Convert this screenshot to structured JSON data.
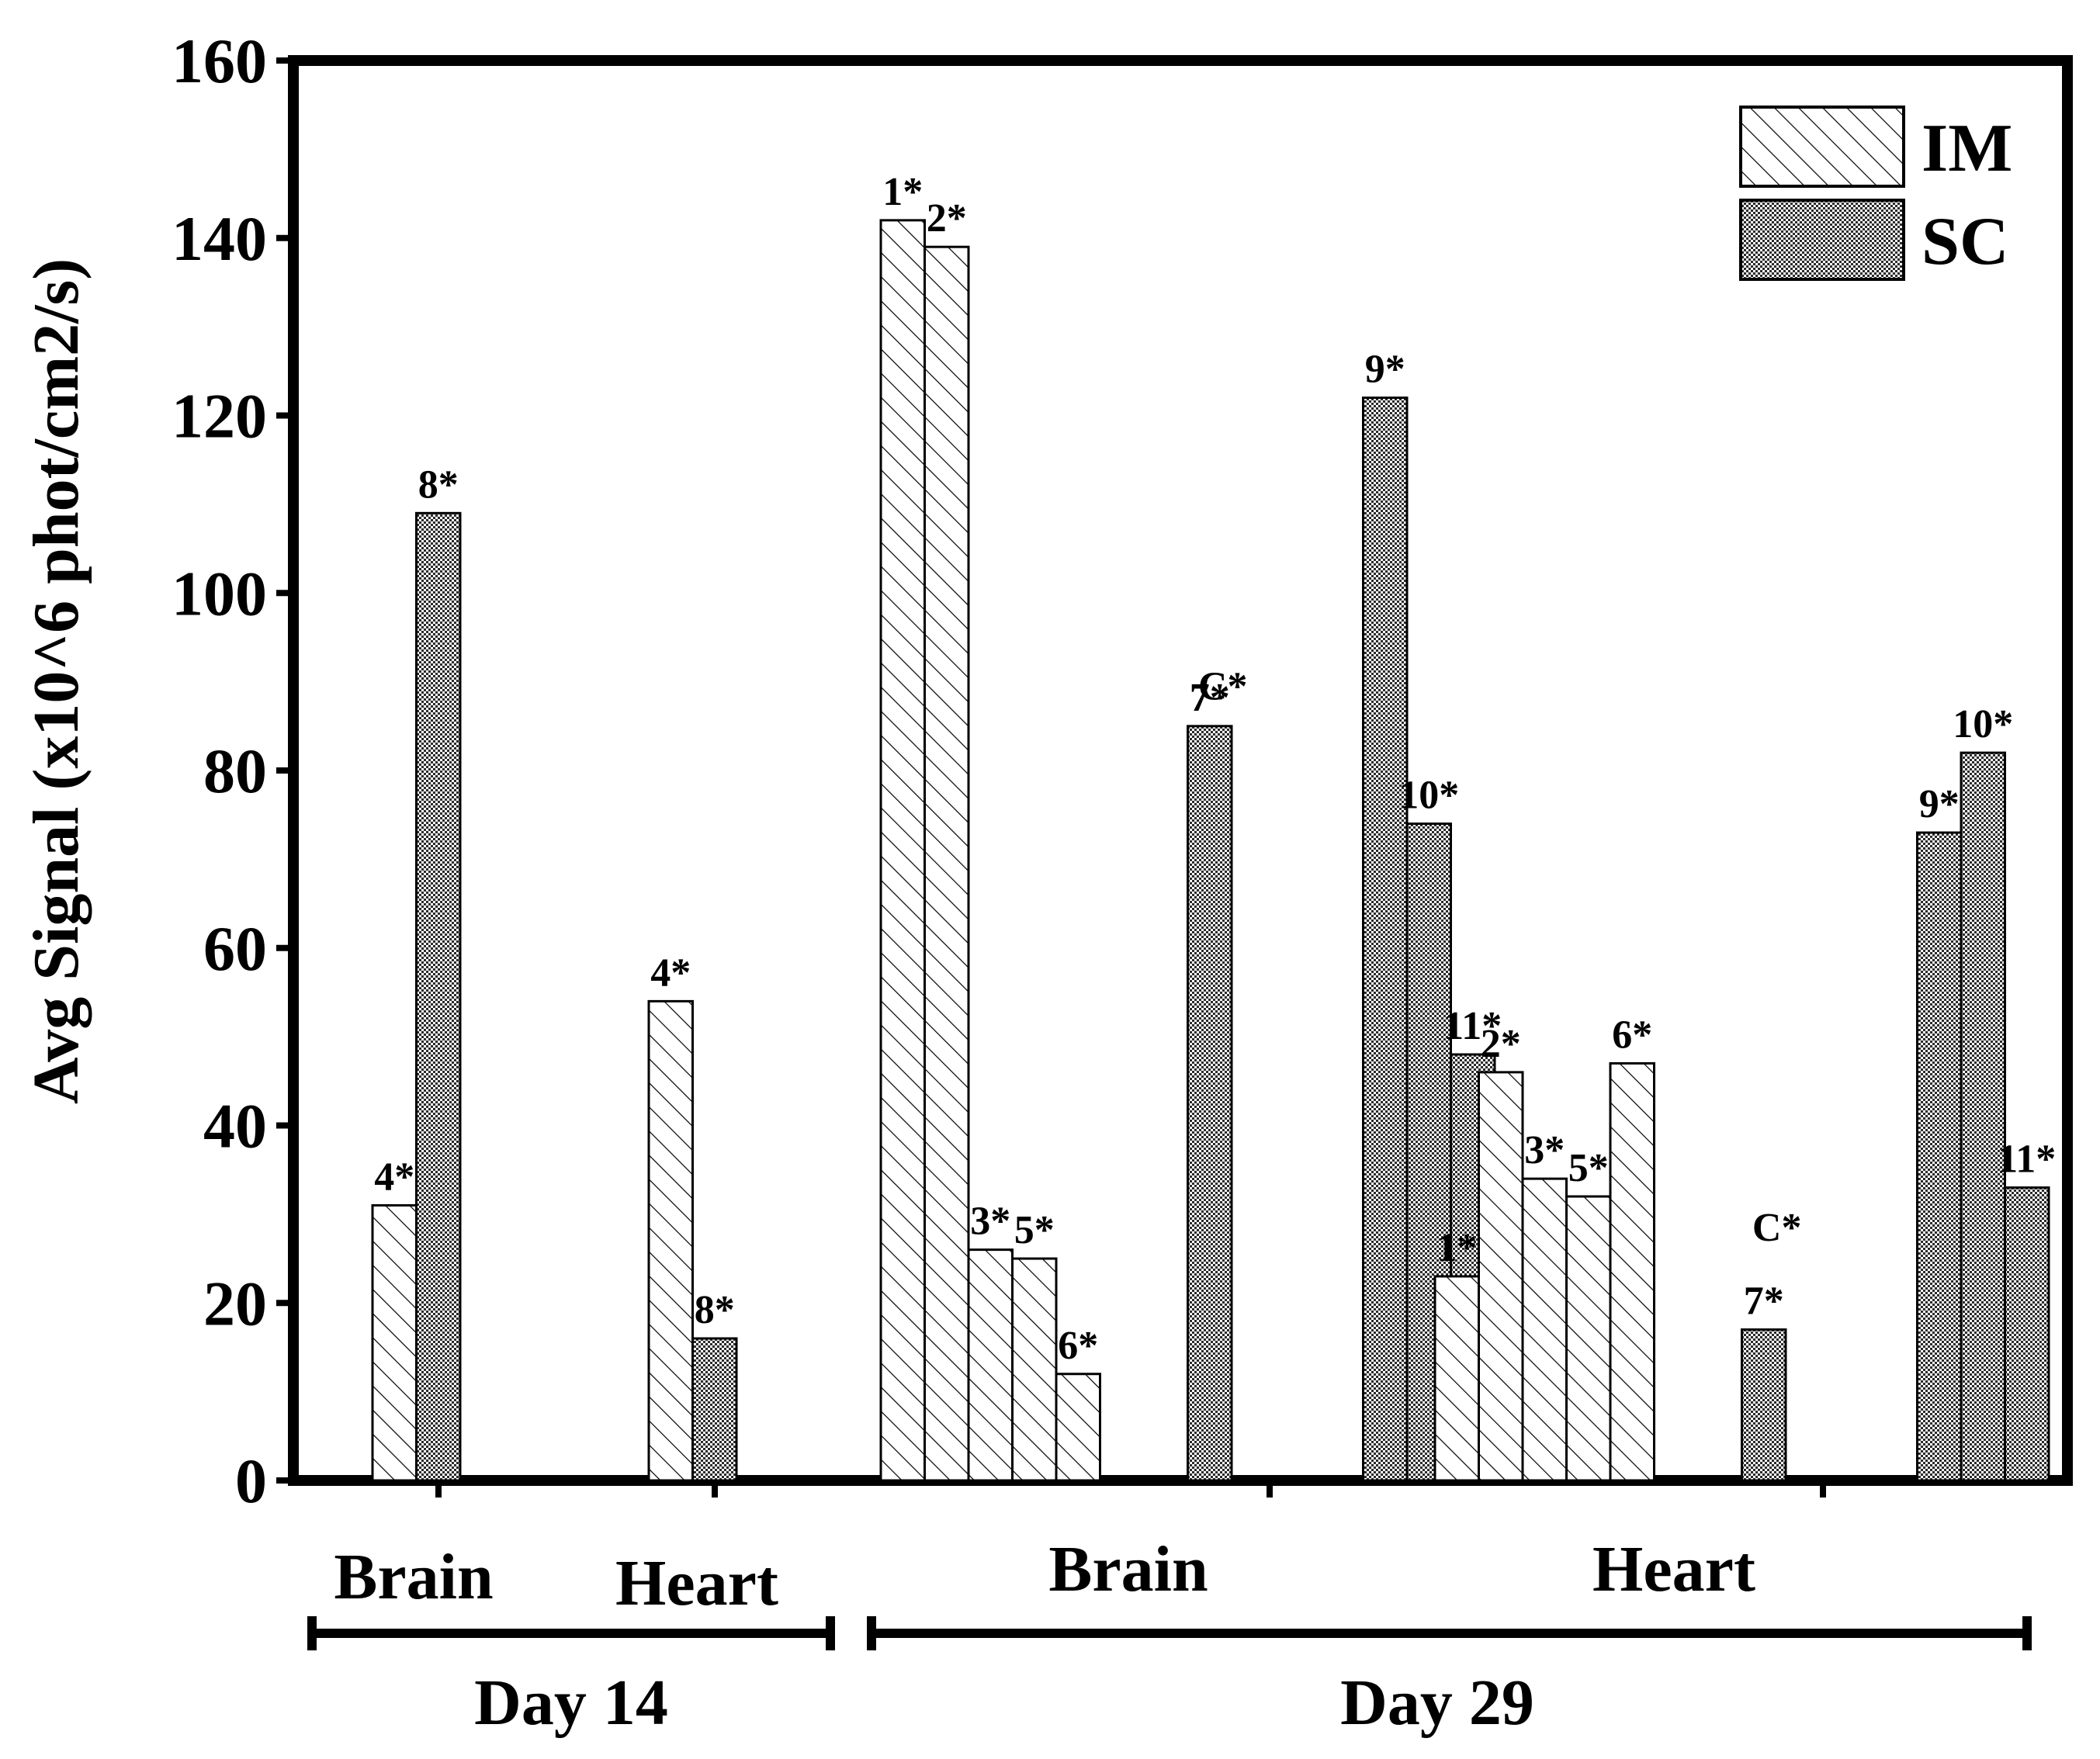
{
  "chart_data": {
    "type": "bar",
    "ylabel": "Avg Signal (x10^6 phot/cm2/s)",
    "ylim": [
      0,
      160
    ],
    "yticks": [
      0,
      20,
      40,
      60,
      80,
      100,
      120,
      140,
      160
    ],
    "legend": {
      "placement": "top-right",
      "entries": [
        {
          "name": "IM",
          "pattern": "hatch"
        },
        {
          "name": "SC",
          "pattern": "checker"
        }
      ]
    },
    "tissue_labels": [
      {
        "text": "Brain",
        "group": "day14-brain"
      },
      {
        "text": "Heart",
        "group": "day14-heart"
      },
      {
        "text": "Brain",
        "group": "day29-brain"
      },
      {
        "text": "Heart",
        "group": "day29-heart"
      }
    ],
    "day_labels": [
      {
        "text": "Day 14",
        "groups": [
          "day14-brain",
          "day14-heart"
        ]
      },
      {
        "text": "Day 29",
        "groups": [
          "day29-brain",
          "day29-heart"
        ]
      }
    ],
    "groups": [
      {
        "id": "day14-brain",
        "bars": [
          {
            "series": "IM",
            "label": "4*",
            "value": 31
          },
          {
            "series": "SC",
            "label": "8*",
            "value": 109
          }
        ]
      },
      {
        "id": "day14-heart",
        "bars": [
          {
            "series": "IM",
            "label": "4*",
            "value": 54
          },
          {
            "series": "SC",
            "label": "8*",
            "value": 16
          }
        ]
      },
      {
        "id": "day29-brain",
        "bars": [
          {
            "series": "IM",
            "label": "1*",
            "value": 142
          },
          {
            "series": "IM",
            "label": "2*",
            "value": 139
          },
          {
            "series": "IM",
            "label": "3*",
            "value": 26
          },
          {
            "series": "IM",
            "label": "5*",
            "value": 25
          },
          {
            "series": "IM",
            "label": "6*",
            "value": 12
          },
          {
            "series": "SC",
            "label": "7*",
            "value": 85
          },
          {
            "series": "SC",
            "label": "C*",
            "value": 0
          },
          {
            "series": "SC",
            "label": "9*",
            "value": 122
          },
          {
            "series": "SC",
            "label": "10*",
            "value": 74
          },
          {
            "series": "SC",
            "label": "11*",
            "value": 48
          }
        ]
      },
      {
        "id": "day29-heart",
        "bars": [
          {
            "series": "IM",
            "label": "1*",
            "value": 23
          },
          {
            "series": "IM",
            "label": "2*",
            "value": 46
          },
          {
            "series": "IM",
            "label": "3*",
            "value": 34
          },
          {
            "series": "IM",
            "label": "5*",
            "value": 32
          },
          {
            "series": "IM",
            "label": "6*",
            "value": 47
          },
          {
            "series": "SC",
            "label": "7*",
            "value": 17
          },
          {
            "series": "SC",
            "label": "C*",
            "value": 0
          },
          {
            "series": "SC",
            "label": "9*",
            "value": 73
          },
          {
            "series": "SC",
            "label": "10*",
            "value": 82
          },
          {
            "series": "SC",
            "label": "11*",
            "value": 33
          }
        ]
      }
    ]
  }
}
